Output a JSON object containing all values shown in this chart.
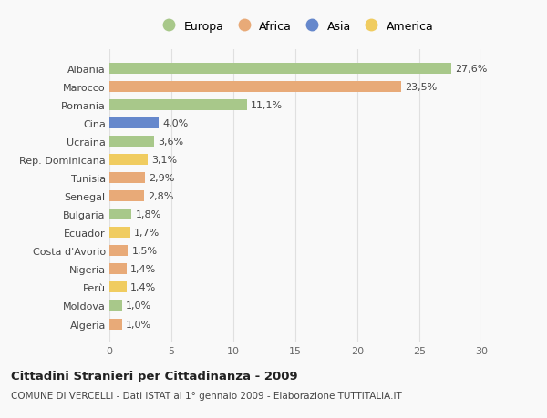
{
  "categories": [
    "Albania",
    "Marocco",
    "Romania",
    "Cina",
    "Ucraina",
    "Rep. Dominicana",
    "Tunisia",
    "Senegal",
    "Bulgaria",
    "Ecuador",
    "Costa d'Avorio",
    "Nigeria",
    "Perù",
    "Moldova",
    "Algeria"
  ],
  "values": [
    27.6,
    23.5,
    11.1,
    4.0,
    3.6,
    3.1,
    2.9,
    2.8,
    1.8,
    1.7,
    1.5,
    1.4,
    1.4,
    1.0,
    1.0
  ],
  "labels": [
    "27,6%",
    "23,5%",
    "11,1%",
    "4,0%",
    "3,6%",
    "3,1%",
    "2,9%",
    "2,8%",
    "1,8%",
    "1,7%",
    "1,5%",
    "1,4%",
    "1,4%",
    "1,0%",
    "1,0%"
  ],
  "continents": [
    "Europa",
    "Africa",
    "Europa",
    "Asia",
    "Europa",
    "America",
    "Africa",
    "Africa",
    "Europa",
    "America",
    "Africa",
    "Africa",
    "America",
    "Europa",
    "Africa"
  ],
  "continent_colors": {
    "Europa": "#a8c88a",
    "Africa": "#e8aa78",
    "Asia": "#6688cc",
    "America": "#f0cc60"
  },
  "legend_order": [
    "Europa",
    "Africa",
    "Asia",
    "America"
  ],
  "title_bold": "Cittadini Stranieri per Cittadinanza - 2009",
  "subtitle": "COMUNE DI VERCELLI - Dati ISTAT al 1° gennaio 2009 - Elaborazione TUTTITALIA.IT",
  "xlim": [
    0,
    30
  ],
  "xticks": [
    0,
    5,
    10,
    15,
    20,
    25,
    30
  ],
  "background_color": "#f9f9f9",
  "bar_height": 0.6,
  "label_fontsize": 8,
  "tick_fontsize": 8,
  "grid_color": "#e0e0e0"
}
